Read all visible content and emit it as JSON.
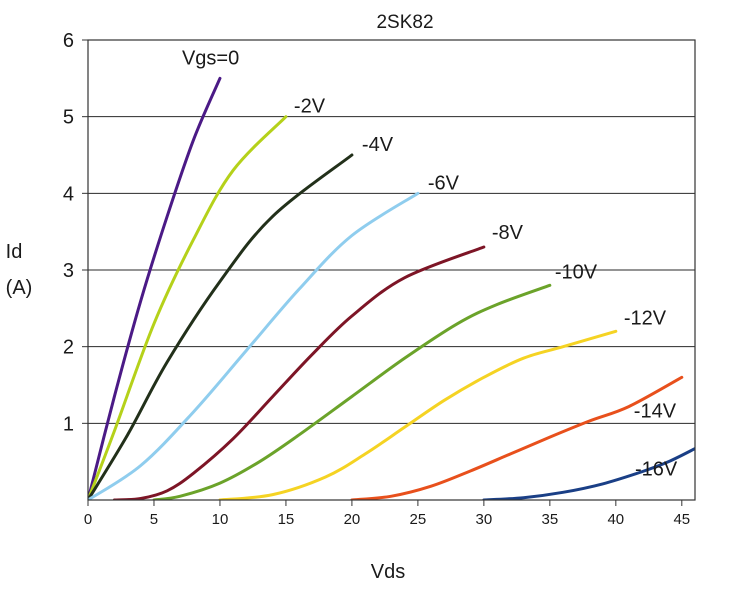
{
  "chart_data": {
    "type": "line",
    "title": "2SK82",
    "xlabel": "Vds",
    "ylabel": [
      "Id",
      "(A)"
    ],
    "xlim": [
      0,
      46
    ],
    "ylim": [
      0,
      6
    ],
    "x_ticks": [
      0,
      5,
      10,
      15,
      20,
      25,
      30,
      35,
      40,
      45
    ],
    "y_ticks": [
      1,
      2,
      3,
      4,
      5,
      6
    ],
    "x_tick_labels": [
      "0",
      "5",
      "10",
      "15",
      "20",
      "25",
      "30",
      "35",
      "40",
      "45"
    ],
    "y_tick_labels": [
      "1",
      "2",
      "3",
      "4",
      "5",
      "6"
    ],
    "grid": "horizontal",
    "series": [
      {
        "name": "Vgs=0",
        "color": "#4b1a86",
        "x": [
          0,
          2,
          4,
          6,
          8,
          10
        ],
        "y": [
          0,
          1.35,
          2.6,
          3.7,
          4.7,
          5.5
        ]
      },
      {
        "name": "-2V",
        "color": "#b5d11a",
        "x": [
          0,
          2,
          5,
          8,
          11,
          15
        ],
        "y": [
          0,
          0.9,
          2.3,
          3.4,
          4.3,
          5.0
        ]
      },
      {
        "name": "-4V",
        "color": "#22301a",
        "x": [
          0,
          3,
          6,
          10,
          14,
          20
        ],
        "y": [
          0,
          0.85,
          1.8,
          2.85,
          3.7,
          4.5
        ]
      },
      {
        "name": "-6V",
        "color": "#8fcdee",
        "x": [
          0,
          4,
          8,
          12,
          16,
          20,
          25
        ],
        "y": [
          0,
          0.45,
          1.15,
          1.95,
          2.75,
          3.45,
          4.0
        ]
      },
      {
        "name": "-8V",
        "color": "#7d1526",
        "x": [
          2,
          4,
          6,
          8,
          11,
          14,
          17,
          20,
          24,
          30
        ],
        "y": [
          0,
          0.02,
          0.12,
          0.35,
          0.8,
          1.35,
          1.9,
          2.4,
          2.9,
          3.3
        ]
      },
      {
        "name": "-10V",
        "color": "#6ba32a",
        "x": [
          5,
          7,
          10,
          13,
          16,
          20,
          24,
          28,
          31,
          35
        ],
        "y": [
          0,
          0.05,
          0.22,
          0.5,
          0.85,
          1.35,
          1.85,
          2.3,
          2.55,
          2.8
        ]
      },
      {
        "name": "-12V",
        "color": "#f5d323",
        "x": [
          10,
          14,
          18,
          21,
          24,
          27,
          30,
          33,
          36,
          40
        ],
        "y": [
          0,
          0.07,
          0.3,
          0.6,
          0.95,
          1.3,
          1.6,
          1.85,
          2.0,
          2.2
        ]
      },
      {
        "name": "-14V",
        "color": "#e8501c",
        "x": [
          20,
          23,
          26,
          29,
          32,
          35,
          38,
          41,
          45
        ],
        "y": [
          0,
          0.05,
          0.18,
          0.38,
          0.6,
          0.82,
          1.03,
          1.22,
          1.6
        ]
      },
      {
        "name": "-16V",
        "color": "#1a3f86",
        "x": [
          30,
          33,
          36,
          39,
          42,
          44,
          46
        ],
        "y": [
          0,
          0.03,
          0.1,
          0.21,
          0.37,
          0.5,
          0.67
        ]
      }
    ]
  }
}
